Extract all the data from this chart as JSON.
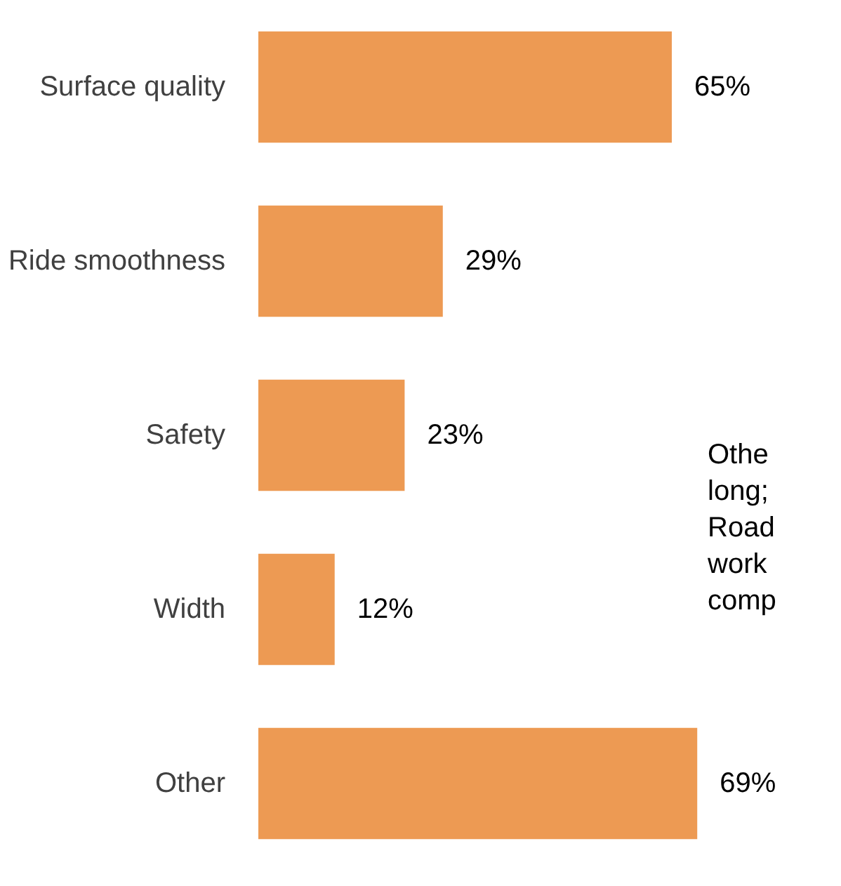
{
  "chart_data": {
    "type": "bar",
    "orientation": "horizontal",
    "categories": [
      "Surface quality",
      "Ride smoothness",
      "Safety",
      "Width",
      "Other"
    ],
    "values": [
      65,
      29,
      23,
      12,
      69
    ],
    "value_labels": [
      "65%",
      "29%",
      "23%",
      "12%",
      "69%"
    ],
    "color": "#ed9a53",
    "annotations": [
      "Othe\nlong;\nRoad\nwork\ncomp"
    ]
  }
}
